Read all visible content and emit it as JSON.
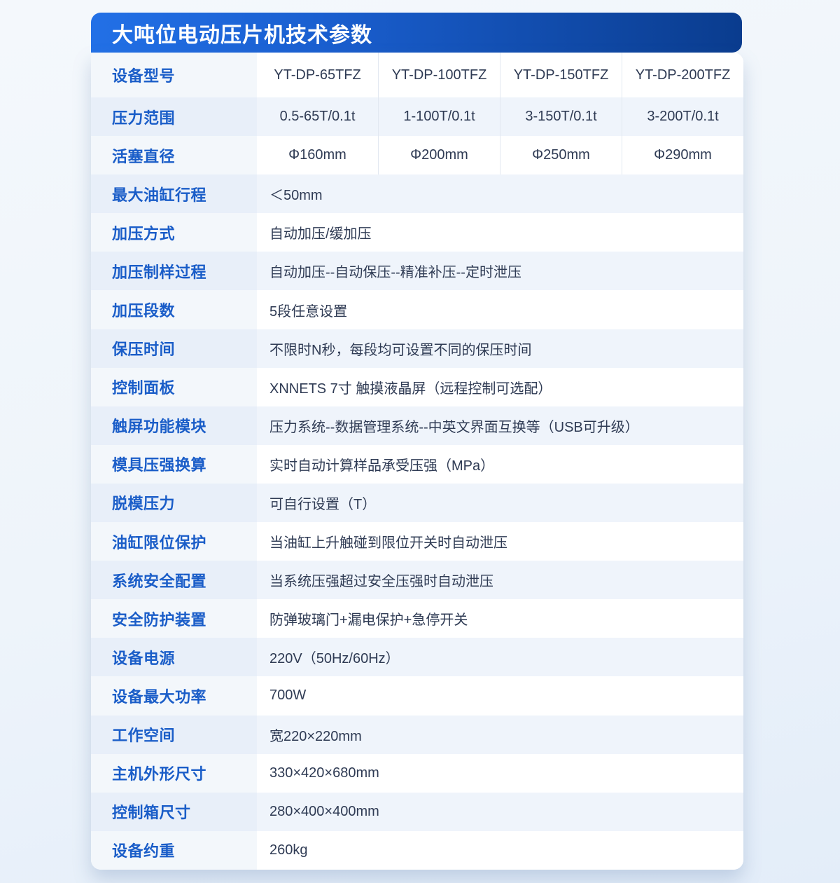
{
  "title": "大吨位电动压片机技术参数",
  "colors": {
    "banner_gradient_start": "#2270e6",
    "banner_gradient_end": "#0a3c8e",
    "label_text": "#1a5dc8",
    "value_text": "#2f3b54",
    "stripe_tint": "#eff4fb",
    "page_background": "#eef4fa"
  },
  "table": {
    "rows": [
      {
        "label": "设备型号",
        "values": [
          "YT-DP-65TFZ",
          "YT-DP-100TFZ",
          "YT-DP-150TFZ",
          "YT-DP-200TFZ"
        ]
      },
      {
        "label": "压力范围",
        "values": [
          "0.5-65T/0.1t",
          "1-100T/0.1t",
          "3-150T/0.1t",
          "3-200T/0.1t"
        ]
      },
      {
        "label": "活塞直径",
        "values": [
          "Φ160mm",
          "Φ200mm",
          "Φ250mm",
          "Φ290mm"
        ]
      },
      {
        "label": "最大油缸行程",
        "value": "＜50mm"
      },
      {
        "label": "加压方式",
        "value": "自动加压/缓加压"
      },
      {
        "label": "加压制样过程",
        "value": "自动加压--自动保压--精准补压--定时泄压"
      },
      {
        "label": "加压段数",
        "value": "5段任意设置"
      },
      {
        "label": "保压时间",
        "value": "不限时N秒，每段均可设置不同的保压时间"
      },
      {
        "label": "控制面板",
        "value": "XNNETS 7寸 触摸液晶屏（远程控制可选配）"
      },
      {
        "label": "触屏功能模块",
        "value": "压力系统--数据管理系统--中英文界面互换等（USB可升级）"
      },
      {
        "label": "模具压强换算",
        "value": "实时自动计算样品承受压强（MPa）"
      },
      {
        "label": "脱模压力",
        "value": "可自行设置（T）"
      },
      {
        "label": "油缸限位保护",
        "value": "当油缸上升触碰到限位开关时自动泄压"
      },
      {
        "label": "系统安全配置",
        "value": "当系统压强超过安全压强时自动泄压"
      },
      {
        "label": "安全防护装置",
        "value": "防弹玻璃门+漏电保护+急停开关"
      },
      {
        "label": "设备电源",
        "value": "220V（50Hz/60Hz）"
      },
      {
        "label": "设备最大功率",
        "value": "700W"
      },
      {
        "label": "工作空间",
        "value": "宽220×220mm"
      },
      {
        "label": "主机外形尺寸",
        "value": "330×420×680mm"
      },
      {
        "label": "控制箱尺寸",
        "value": "280×400×400mm"
      },
      {
        "label": "设备约重",
        "value": "260kg"
      }
    ]
  }
}
